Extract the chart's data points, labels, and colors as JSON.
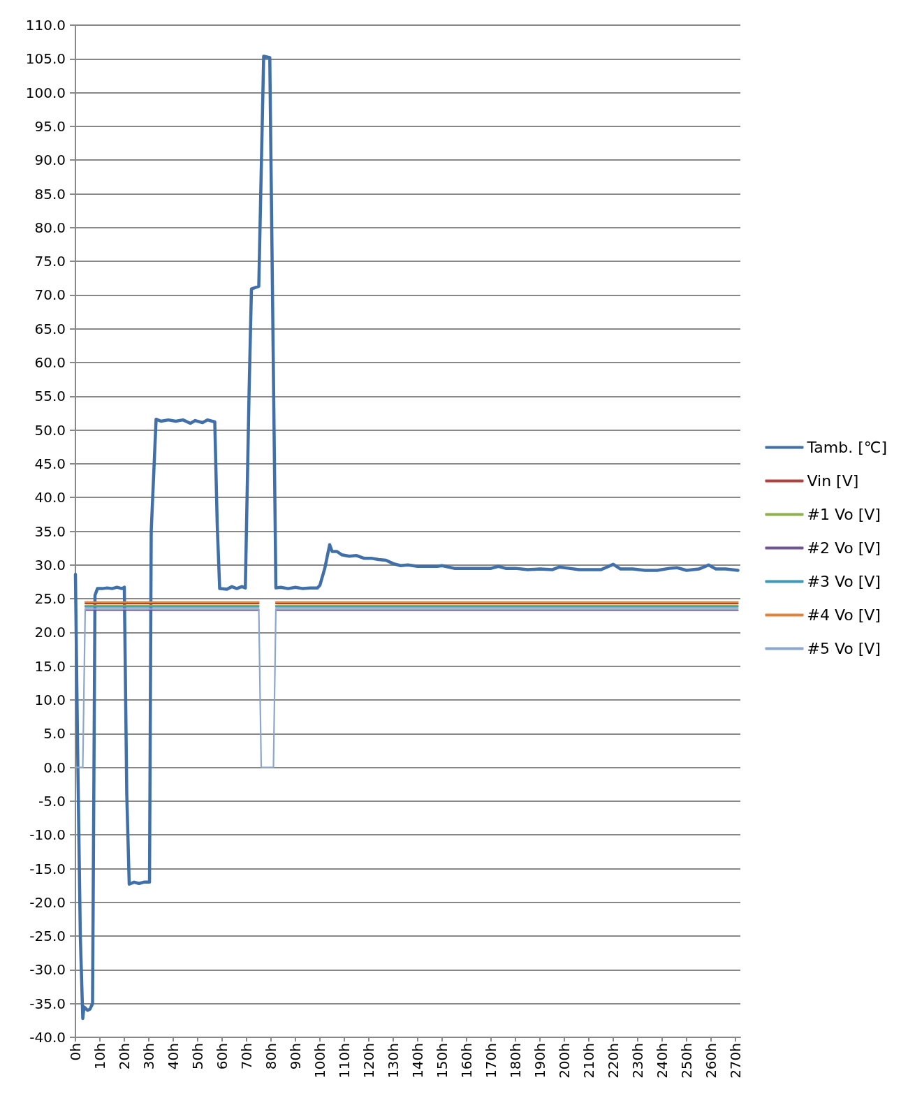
{
  "chart_data": {
    "type": "line",
    "legend": "right",
    "grid": "y",
    "marker": "none",
    "line_style": "solid",
    "xlim": [
      0,
      272
    ],
    "xticks": [
      {
        "value": 0,
        "label": "0h"
      },
      {
        "value": 10,
        "label": "10h"
      },
      {
        "value": 20,
        "label": "20h"
      },
      {
        "value": 30,
        "label": "30h"
      },
      {
        "value": 40,
        "label": "40h"
      },
      {
        "value": 50,
        "label": "50h"
      },
      {
        "value": 60,
        "label": "60h"
      },
      {
        "value": 70,
        "label": "70h"
      },
      {
        "value": 80,
        "label": "80h"
      },
      {
        "value": 90,
        "label": "90h"
      },
      {
        "value": 100,
        "label": "100h"
      },
      {
        "value": 110,
        "label": "110h"
      },
      {
        "value": 120,
        "label": "120h"
      },
      {
        "value": 130,
        "label": "130h"
      },
      {
        "value": 140,
        "label": "140h"
      },
      {
        "value": 150,
        "label": "150h"
      },
      {
        "value": 160,
        "label": "160h"
      },
      {
        "value": 170,
        "label": "170h"
      },
      {
        "value": 180,
        "label": "180h"
      },
      {
        "value": 190,
        "label": "190h"
      },
      {
        "value": 200,
        "label": "200h"
      },
      {
        "value": 210,
        "label": "210h"
      },
      {
        "value": 220,
        "label": "220h"
      },
      {
        "value": 230,
        "label": "230h"
      },
      {
        "value": 240,
        "label": "240h"
      },
      {
        "value": 250,
        "label": "250h"
      },
      {
        "value": 260,
        "label": "260h"
      },
      {
        "value": 270,
        "label": "270h"
      }
    ],
    "ylim": [
      -40,
      110
    ],
    "yticks": [
      {
        "value": -40,
        "label": "-40.0"
      },
      {
        "value": -35,
        "label": "-35.0"
      },
      {
        "value": -30,
        "label": "-30.0"
      },
      {
        "value": -25,
        "label": "-25.0"
      },
      {
        "value": -20,
        "label": "-20.0"
      },
      {
        "value": -15,
        "label": "-15.0"
      },
      {
        "value": -10,
        "label": "-10.0"
      },
      {
        "value": -5,
        "label": "-5.0"
      },
      {
        "value": 0,
        "label": "0.0"
      },
      {
        "value": 5,
        "label": "5.0"
      },
      {
        "value": 10,
        "label": "10.0"
      },
      {
        "value": 15,
        "label": "15.0"
      },
      {
        "value": 20,
        "label": "20.0"
      },
      {
        "value": 25,
        "label": "25.0"
      },
      {
        "value": 30,
        "label": "30.0"
      },
      {
        "value": 35,
        "label": "35.0"
      },
      {
        "value": 40,
        "label": "40.0"
      },
      {
        "value": 45,
        "label": "45.0"
      },
      {
        "value": 50,
        "label": "50.0"
      },
      {
        "value": 55,
        "label": "55.0"
      },
      {
        "value": 60,
        "label": "60.0"
      },
      {
        "value": 65,
        "label": "65.0"
      },
      {
        "value": 70,
        "label": "70.0"
      },
      {
        "value": 75,
        "label": "75.0"
      },
      {
        "value": 80,
        "label": "80.0"
      },
      {
        "value": 85,
        "label": "85.0"
      },
      {
        "value": 90,
        "label": "90.0"
      },
      {
        "value": 95,
        "label": "95.0"
      },
      {
        "value": 100,
        "label": "100.0"
      },
      {
        "value": 105,
        "label": "105.0"
      },
      {
        "value": 110,
        "label": "110.0"
      }
    ],
    "series": [
      {
        "name": "Tamb. [℃]",
        "color": "#4170a8",
        "x": [
          0,
          1,
          2,
          3,
          3.5,
          5,
          6,
          7,
          8,
          9,
          11,
          13,
          15,
          17,
          19,
          20,
          21,
          22,
          24,
          26,
          28,
          30.3,
          31,
          33,
          35,
          38,
          41,
          44,
          47,
          49,
          52,
          54,
          57,
          58,
          59,
          62,
          64,
          66,
          68,
          69.5,
          71,
          72,
          75,
          77,
          79.5,
          82,
          84,
          87,
          90,
          93,
          96,
          99,
          100,
          102,
          104,
          105,
          107,
          109,
          112,
          115,
          118,
          121,
          124,
          127,
          130,
          133,
          136,
          140,
          144,
          148,
          150,
          155,
          160,
          165,
          170,
          173,
          176,
          180,
          185,
          190,
          195,
          198,
          202,
          206,
          210,
          215,
          220,
          223,
          228,
          233,
          238,
          243,
          246,
          250,
          255,
          259,
          262,
          266,
          271
        ],
        "values": [
          28.6,
          0,
          -25,
          -37.2,
          -35.5,
          -36,
          -35.8,
          -35,
          25.5,
          26.5,
          26.5,
          26.6,
          26.5,
          26.7,
          26.5,
          26.7,
          -4,
          -17.3,
          -17,
          -17.2,
          -17,
          -17,
          35,
          51.6,
          51.3,
          51.5,
          51.3,
          51.5,
          51,
          51.4,
          51.1,
          51.5,
          51.2,
          36,
          26.5,
          26.4,
          26.8,
          26.5,
          26.8,
          26.6,
          55,
          70.9,
          71.3,
          105.4,
          105.2,
          26.6,
          26.7,
          26.5,
          26.7,
          26.5,
          26.6,
          26.6,
          27,
          29.5,
          33,
          32,
          32,
          31.5,
          31.3,
          31.4,
          31,
          31,
          30.8,
          30.7,
          30.2,
          29.9,
          30,
          29.8,
          29.8,
          29.8,
          29.9,
          29.5,
          29.5,
          29.5,
          29.5,
          29.8,
          29.5,
          29.5,
          29.3,
          29.4,
          29.3,
          29.7,
          29.5,
          29.3,
          29.3,
          29.3,
          30.1,
          29.4,
          29.4,
          29.2,
          29.2,
          29.5,
          29.6,
          29.2,
          29.4,
          30,
          29.4,
          29.4,
          29.2
        ]
      },
      {
        "name": "Vin [V]",
        "color": "#b0413e",
        "x": [
          4,
          75,
          null,
          82,
          271
        ],
        "values": [
          24.3,
          24.3,
          null,
          24.3,
          24.3
        ]
      },
      {
        "name": "#1 Vo [V]",
        "color": "#8db04a",
        "x": [
          4,
          75,
          null,
          82,
          271
        ],
        "values": [
          24,
          24,
          null,
          24,
          24
        ]
      },
      {
        "name": "#2 Vo [V]",
        "color": "#6f558f",
        "x": [
          4,
          75,
          null,
          82,
          271
        ],
        "values": [
          23.3,
          23.3,
          null,
          23.3,
          23.3
        ]
      },
      {
        "name": "#3 Vo [V]",
        "color": "#3d9ab4",
        "x": [
          4,
          75,
          null,
          82,
          271
        ],
        "values": [
          23.8,
          23.8,
          null,
          23.8,
          23.8
        ]
      },
      {
        "name": "#4 Vo [V]",
        "color": "#e0823a",
        "x": [
          4,
          75,
          null,
          82,
          271
        ],
        "values": [
          24.5,
          24.5,
          null,
          24.5,
          24.5
        ]
      },
      {
        "name": "#5 Vo [V]",
        "color": "#8da6cc",
        "x": [
          0,
          3,
          4,
          75,
          76,
          81,
          82,
          271
        ],
        "values": [
          0,
          0,
          23.5,
          23.5,
          0,
          0,
          23.5,
          23.5
        ]
      }
    ]
  }
}
